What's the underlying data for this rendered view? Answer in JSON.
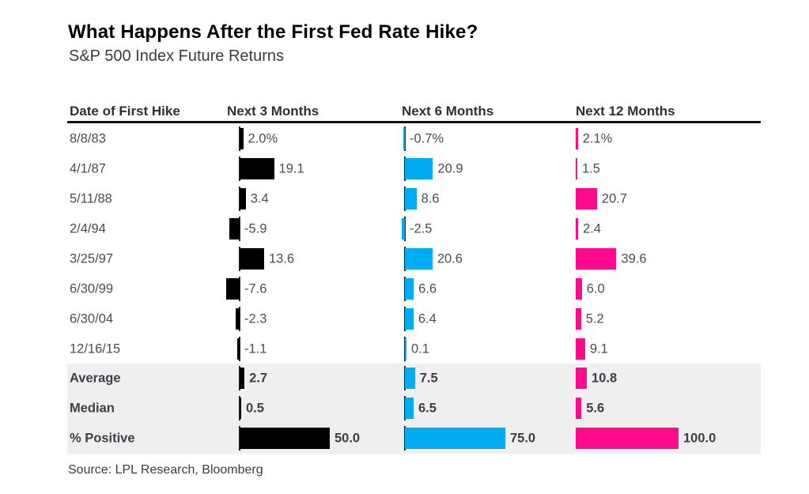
{
  "header": {
    "title": "What Happens After the First Fed Rate Hike?",
    "subtitle": "S&P 500 Index Future Returns"
  },
  "source": "Source: LPL Research, Bloomberg",
  "chart_data": {
    "type": "bar",
    "title": "What Happens After the First Fed Rate Hike?",
    "subtitle": "S&P 500 Index Future Returns",
    "unit": "percent",
    "legend_position": "none",
    "grid": false,
    "columns": [
      "Date of First Hike",
      "Next 3 Months",
      "Next 6 Months",
      "Next 12 Months"
    ],
    "bar_colors": [
      "#000000",
      "#00ADF2",
      "#FF0A8C"
    ],
    "rows": [
      {
        "date": "8/8/83",
        "values": [
          2.0,
          -0.7,
          2.1
        ],
        "labels": [
          "2.0%",
          "-0.7%",
          "2.1%"
        ]
      },
      {
        "date": "4/1/87",
        "values": [
          19.1,
          20.9,
          1.5
        ],
        "labels": [
          "19.1",
          "20.9",
          "1.5"
        ]
      },
      {
        "date": "5/11/88",
        "values": [
          3.4,
          8.6,
          20.7
        ],
        "labels": [
          "3.4",
          "8.6",
          "20.7"
        ]
      },
      {
        "date": "2/4/94",
        "values": [
          -5.9,
          -2.5,
          2.4
        ],
        "labels": [
          "-5.9",
          "-2.5",
          "2.4"
        ]
      },
      {
        "date": "3/25/97",
        "values": [
          13.6,
          20.6,
          39.6
        ],
        "labels": [
          "13.6",
          "20.6",
          "39.6"
        ]
      },
      {
        "date": "6/30/99",
        "values": [
          -7.6,
          6.6,
          6.0
        ],
        "labels": [
          "-7.6",
          "6.6",
          "6.0"
        ]
      },
      {
        "date": "6/30/04",
        "values": [
          -2.3,
          6.4,
          5.2
        ],
        "labels": [
          "-2.3",
          "6.4",
          "5.2"
        ]
      },
      {
        "date": "12/16/15",
        "values": [
          -1.1,
          0.1,
          9.1
        ],
        "labels": [
          "-1.1",
          "0.1",
          "9.1"
        ]
      }
    ],
    "summary": [
      {
        "label": "Average",
        "values": [
          2.7,
          7.5,
          10.8
        ],
        "labels": [
          "2.7",
          "7.5",
          "10.8"
        ]
      },
      {
        "label": "Median",
        "values": [
          0.5,
          6.5,
          5.6
        ],
        "labels": [
          "0.5",
          "6.5",
          "5.6"
        ]
      },
      {
        "label": "% Positive",
        "values": [
          50.0,
          75.0,
          100.0
        ],
        "labels": [
          "50.0",
          "75.0",
          "100.0"
        ]
      }
    ]
  }
}
